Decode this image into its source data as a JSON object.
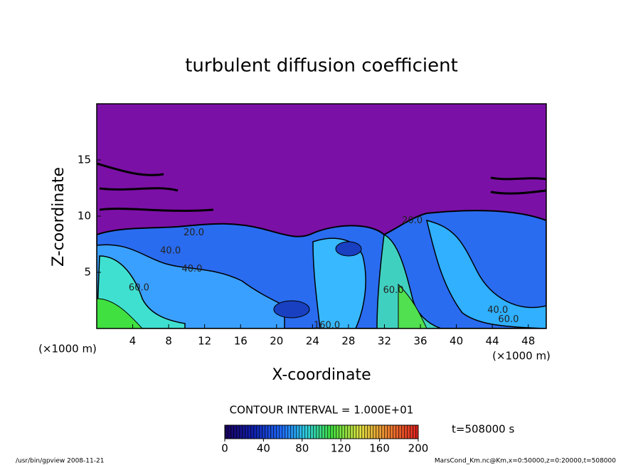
{
  "chart_data": {
    "type": "contour",
    "title": "turbulent diffusion coefficient",
    "x_label": "X-coordinate",
    "y_label": "Z-coordinate",
    "x_unit": "(×1000 m)",
    "y_unit": "(×1000 m)",
    "xlim": [
      0,
      50
    ],
    "xticks": [
      4,
      8,
      12,
      16,
      20,
      24,
      28,
      32,
      36,
      40,
      44,
      48
    ],
    "ylim": [
      0,
      20
    ],
    "yticks": [
      5,
      10,
      15
    ],
    "contour_labels": [
      {
        "text": "20.0",
        "x": 10.8,
        "y": 8.5
      },
      {
        "text": "40.0",
        "x": 8.2,
        "y": 6.9
      },
      {
        "text": "40.0",
        "x": 10.6,
        "y": 5.3
      },
      {
        "text": "60.0",
        "x": 4.7,
        "y": 3.6
      },
      {
        "text": "20.0",
        "x": 35.1,
        "y": 9.6
      },
      {
        "text": "160.0",
        "x": 25.6,
        "y": 0.25
      },
      {
        "text": "60.0",
        "x": 33,
        "y": 3.4
      },
      {
        "text": "40.0",
        "x": 44.6,
        "y": 1.6
      },
      {
        "text": "60.0",
        "x": 45.8,
        "y": 0.8
      }
    ],
    "contour_interval": "CONTOUR INTERVAL = 1.000E+01",
    "colorbar": {
      "lim": [
        0,
        200
      ],
      "ticks": [
        0,
        40,
        80,
        120,
        160,
        200
      ]
    },
    "time_label": "t=508000 s",
    "footer_left": "/usr/bin/gpview  2008-11-21",
    "footer_right": "MarsCond_Km.nc@Km,x=0:50000,z=0:20000,t=508000"
  }
}
